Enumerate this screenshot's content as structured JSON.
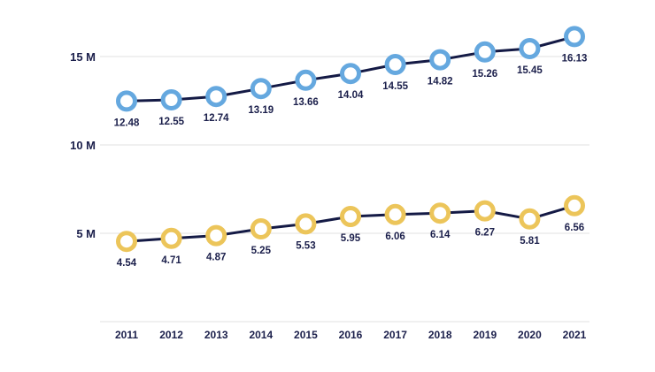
{
  "chart_data": {
    "type": "line",
    "title": "",
    "xlabel": "",
    "ylabel": "",
    "categories": [
      "2011",
      "2012",
      "2013",
      "2014",
      "2015",
      "2016",
      "2017",
      "2018",
      "2019",
      "2020",
      "2021"
    ],
    "yticks": [
      {
        "value": 5,
        "label": "5 M"
      },
      {
        "value": 10,
        "label": "10 M"
      },
      {
        "value": 15,
        "label": "15 M"
      }
    ],
    "ylim": [
      0,
      17
    ],
    "grid": true,
    "legend": "none",
    "series": [
      {
        "color": "#65a8df",
        "label_position": "below",
        "values": [
          12.48,
          12.55,
          12.74,
          13.19,
          13.66,
          14.04,
          14.55,
          14.82,
          15.26,
          15.45,
          16.13
        ],
        "labels": [
          "12.48",
          "12.55",
          "12.74",
          "13.19",
          "13.66",
          "14.04",
          "14.55",
          "14.82",
          "15.26",
          "15.45",
          "16.13"
        ]
      },
      {
        "color": "#ecc55a",
        "label_position": "below",
        "values": [
          4.54,
          4.71,
          4.87,
          5.25,
          5.53,
          5.95,
          6.06,
          6.14,
          6.27,
          5.81,
          6.56
        ],
        "labels": [
          "4.54",
          "4.71",
          "4.87",
          "5.25",
          "5.53",
          "5.95",
          "6.06",
          "6.14",
          "6.27",
          "5.81",
          "6.56"
        ]
      }
    ],
    "line_color": "#141a45"
  }
}
